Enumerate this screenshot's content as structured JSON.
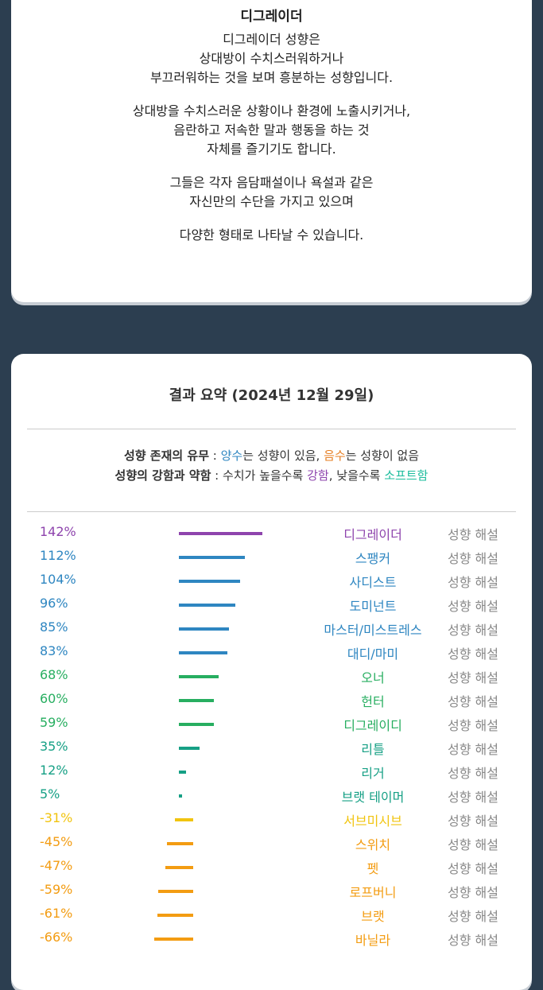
{
  "description": {
    "title": "디그레이더",
    "paragraphs": [
      "디그레이더 성향은\n상대방이 수치스러워하거나\n부끄러워하는 것을 보며 흥분하는 성향입니다.",
      "상대방을 수치스러운 상황이나 환경에 노출시키거나,\n음란하고 저속한 말과 행동을 하는 것\n자체를 즐기기도 합니다.",
      "그들은 각자 음담패설이나 욕설과 같은\n자신만의 수단을 가지고 있으며",
      "다양한 형태로 나타날 수 있습니다."
    ]
  },
  "summary": {
    "title": "결과 요약 (2024년 12월 29일)",
    "legend1": {
      "label": "성향 존재의 유무",
      "sep": " : ",
      "pos": "양수",
      "pos_text": "는 성향이 있음, ",
      "neg": "음수",
      "neg_text": "는 성향이 없음"
    },
    "legend2": {
      "label": "성향의 강함과 약함",
      "sep": " : ",
      "text": "수치가 높을수록 ",
      "strong": "강함",
      "mid": ", 낮을수록 ",
      "soft": "소프트함"
    }
  },
  "link_label": "성향 해설",
  "colors": {
    "purple": "#8e44ad",
    "blue": "#2e86c1",
    "green": "#27ae60",
    "teal": "#16a085",
    "yellow": "#f1c40f",
    "orange": "#f39c12"
  },
  "chart_data": {
    "type": "bar",
    "categories": [
      "디그레이더",
      "스팽커",
      "사디스트",
      "도미넌트",
      "마스터/미스트레스",
      "대디/마미",
      "오너",
      "헌터",
      "디그레이디",
      "리틀",
      "리거",
      "브랫 테이머",
      "서브미시브",
      "스위치",
      "펫",
      "로프버니",
      "브랫",
      "바닐라"
    ],
    "values": [
      142,
      112,
      104,
      96,
      85,
      83,
      68,
      60,
      59,
      35,
      12,
      5,
      -31,
      -45,
      -47,
      -59,
      -61,
      -66
    ],
    "labels": [
      "142%",
      "112%",
      "104%",
      "96%",
      "85%",
      "83%",
      "68%",
      "60%",
      "59%",
      "35%",
      "12%",
      "5%",
      "-31%",
      "-45%",
      "-47%",
      "-59%",
      "-61%",
      "-66%"
    ],
    "color_keys": [
      "purple",
      "blue",
      "blue",
      "blue",
      "blue",
      "blue",
      "green",
      "green",
      "green",
      "teal",
      "teal",
      "teal",
      "yellow",
      "orange",
      "orange",
      "orange",
      "orange",
      "orange"
    ]
  }
}
